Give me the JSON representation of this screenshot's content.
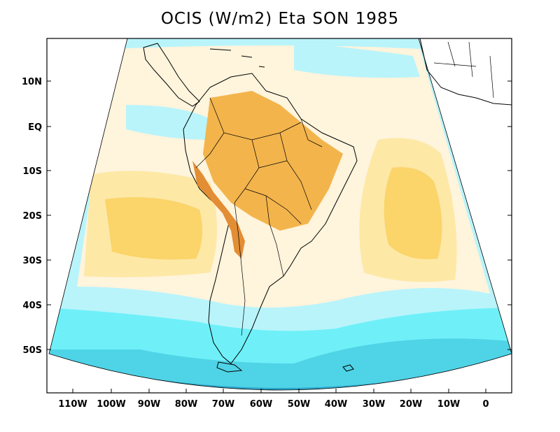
{
  "title": "OCIS (W/m2) Eta SON 1985",
  "colors": {
    "deep_blue": "#2ca5c9",
    "mid_blue": "#4fd3e6",
    "cyan": "#6ff0f8",
    "light_cyan": "#b9f4fb",
    "pale": "#fff4dc",
    "light_yellow": "#fde8a6",
    "yellow": "#fbd46a",
    "orange": "#f3b44c",
    "dark_orange": "#e38d34"
  },
  "axes": {
    "y_ticks": [
      "10N",
      "EQ",
      "10S",
      "20S",
      "30S",
      "40S",
      "50S"
    ],
    "x_ticks": [
      "110W",
      "100W",
      "90W",
      "80W",
      "70W",
      "60W",
      "50W",
      "40W",
      "30W",
      "20W",
      "10W",
      "0"
    ]
  }
}
